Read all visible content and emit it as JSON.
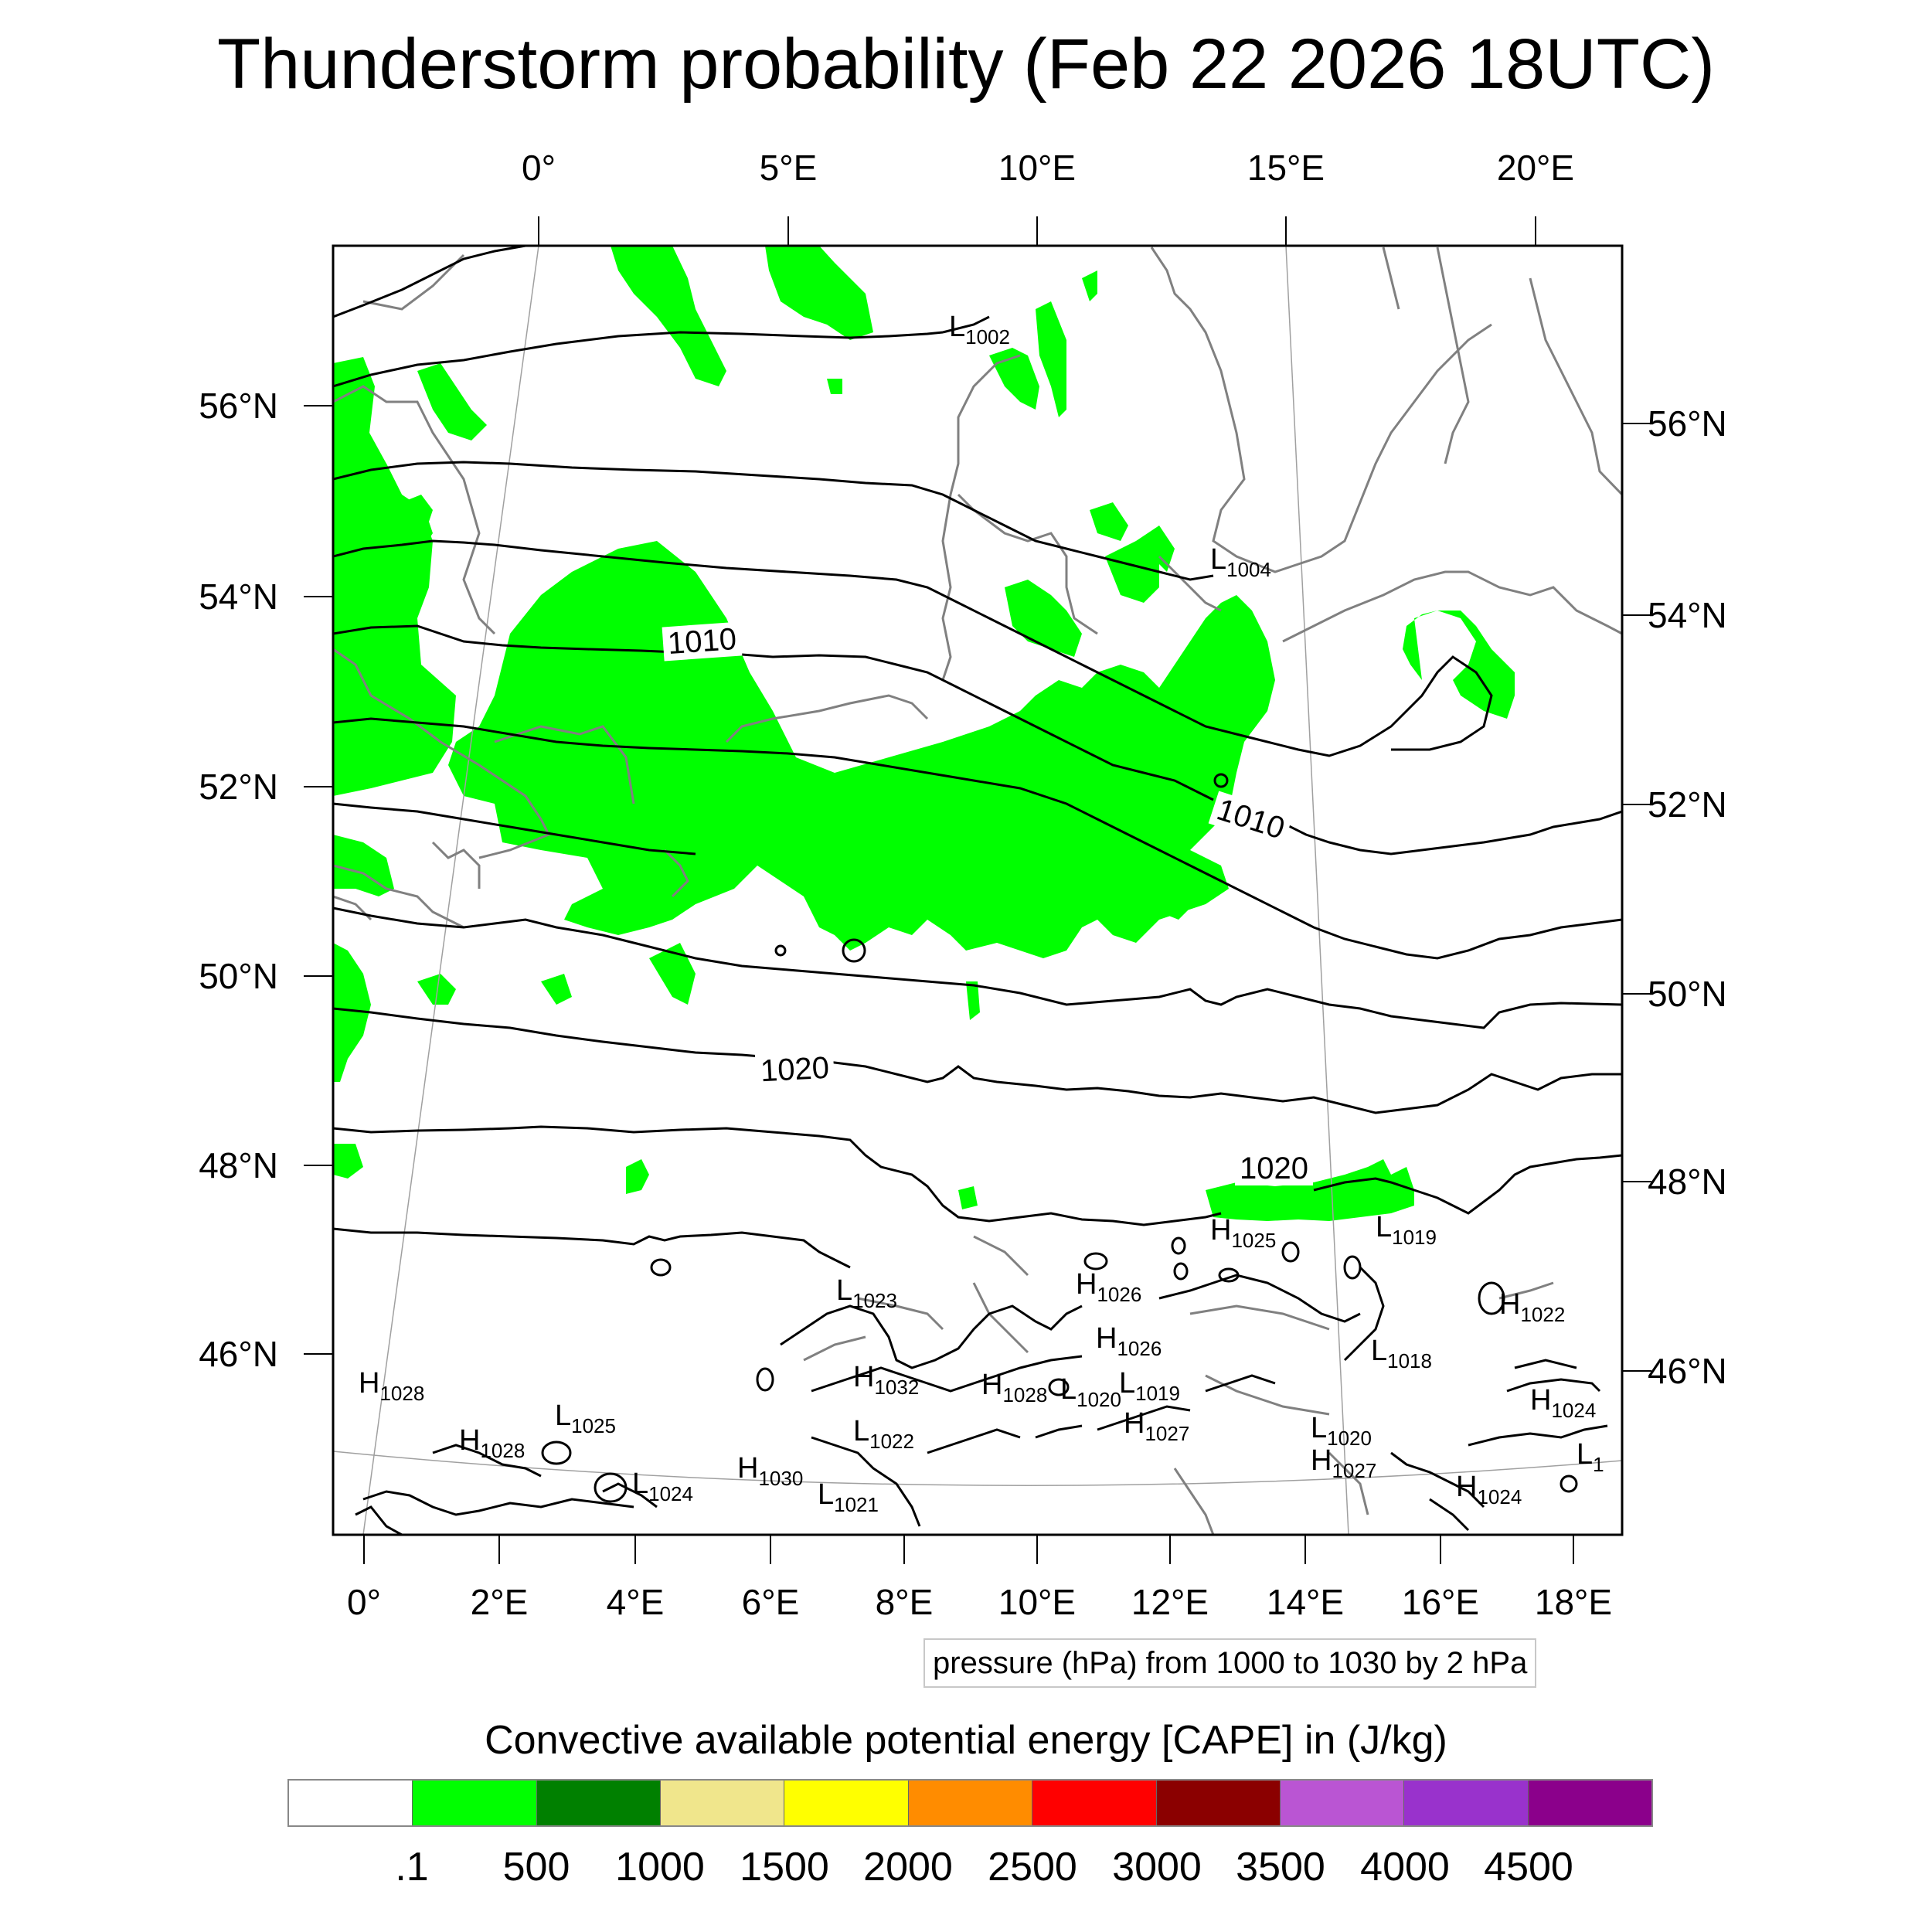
{
  "title": "Thunderstorm probability (Feb 22 2026 18UTC)",
  "axes": {
    "top_lon_labels": [
      "0°",
      "5°E",
      "10°E",
      "15°E",
      "20°E"
    ],
    "bottom_lon_labels": [
      "0°",
      "2°E",
      "4°E",
      "6°E",
      "8°E",
      "10°E",
      "12°E",
      "14°E",
      "16°E",
      "18°E"
    ],
    "left_lat_labels": [
      "56°N",
      "54°N",
      "52°N",
      "50°N",
      "48°N",
      "46°N"
    ],
    "right_lat_labels": [
      "56°N",
      "54°N",
      "52°N",
      "50°N",
      "48°N",
      "46°N"
    ]
  },
  "pressure_contours": {
    "units": "hPa",
    "levels_labeled": [
      "1010",
      "1010",
      "1020",
      "1020"
    ],
    "info_text": "pressure (hPa) from 1000 to 1030 by 2 hPa"
  },
  "pressure_centers": [
    {
      "type": "L",
      "value": "1002"
    },
    {
      "type": "L",
      "value": "1004"
    },
    {
      "type": "H",
      "value": "1025"
    },
    {
      "type": "L",
      "value": "1019"
    },
    {
      "type": "L",
      "value": "1023"
    },
    {
      "type": "H",
      "value": "1026"
    },
    {
      "type": "H",
      "value": "1026"
    },
    {
      "type": "H",
      "value": "1022"
    },
    {
      "type": "L",
      "value": "1018"
    },
    {
      "type": "H",
      "value": "1032"
    },
    {
      "type": "H",
      "value": "1028"
    },
    {
      "type": "L",
      "value": "1020"
    },
    {
      "type": "L",
      "value": "1019"
    },
    {
      "type": "H",
      "value": "1028"
    },
    {
      "type": "H",
      "value": "1024"
    },
    {
      "type": "L",
      "value": "1025"
    },
    {
      "type": "H",
      "value": "1028"
    },
    {
      "type": "L",
      "value": "1022"
    },
    {
      "type": "H",
      "value": "1027"
    },
    {
      "type": "L",
      "value": "1020"
    },
    {
      "type": "H",
      "value": "1027"
    },
    {
      "type": "L",
      "value": "1"
    },
    {
      "type": "H",
      "value": "1030"
    },
    {
      "type": "L",
      "value": "1024"
    },
    {
      "type": "L",
      "value": "1021"
    },
    {
      "type": "H",
      "value": "1024"
    }
  ],
  "colorbar": {
    "title": "Convective available potential energy [CAPE] in (J/kg)",
    "colors": [
      "#ffffff",
      "#00ff00",
      "#008000",
      "#f0e68c",
      "#ffff00",
      "#ff8c00",
      "#ff0000",
      "#8b0000",
      "#ba55d3",
      "#9932cc",
      "#8b008b"
    ],
    "labels": [
      ".1",
      "500",
      "1000",
      "1500",
      "2000",
      "2500",
      "3000",
      "3500",
      "4000",
      "4500"
    ]
  },
  "colors": {
    "cape_fill": "#00ff00",
    "coastline": "#808080",
    "isobar": "#000000",
    "graticule": "#a0a0a0"
  }
}
